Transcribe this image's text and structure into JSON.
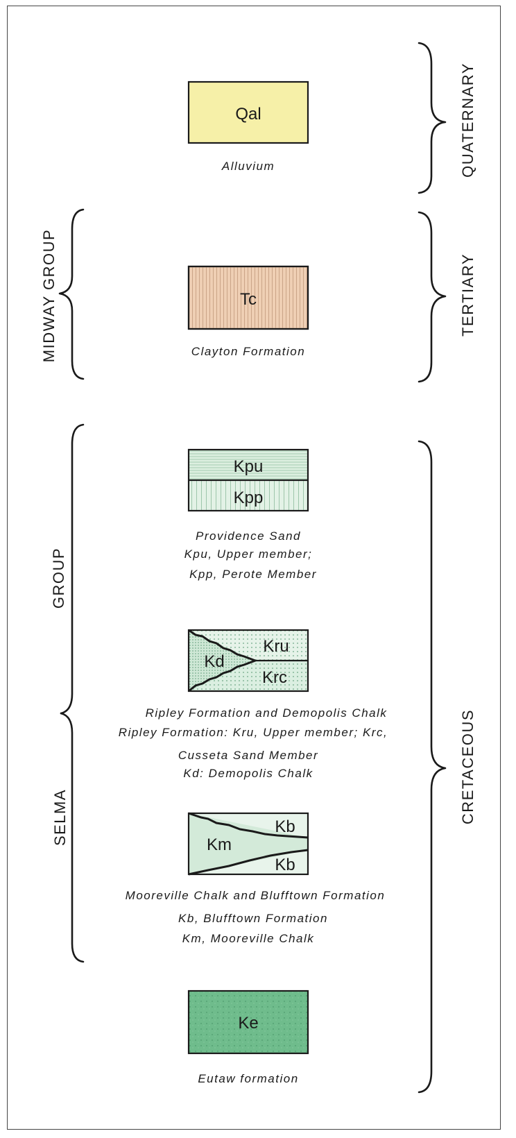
{
  "units": [
    {
      "id": "qal",
      "symbols": [
        "Qal"
      ],
      "caption": [
        "Alluvium"
      ],
      "color": "#f6f0a8"
    },
    {
      "id": "tc",
      "symbols": [
        "Tc"
      ],
      "caption": [
        "Clayton Formation"
      ],
      "color": "#efcfb4"
    },
    {
      "id": "kp",
      "symbols": [
        "Kpu",
        "Kpp"
      ],
      "caption": [
        "Providence Sand",
        "Kpu, Upper member;",
        "Kpp, Perote Member"
      ],
      "color": "#dcefe0"
    },
    {
      "id": "kr",
      "symbols": [
        "Kd",
        "Kru",
        "Krc"
      ],
      "caption": [
        "Ripley Formation and Demopolis Chalk",
        "Ripley Formation: Kru, Upper member; Krc,",
        "Cusseta Sand Member",
        "Kd: Demopolis Chalk"
      ],
      "color": "#dbefe2"
    },
    {
      "id": "km",
      "symbols": [
        "Km",
        "Kb",
        "Kb"
      ],
      "caption": [
        "Mooreville Chalk and Blufftown Formation",
        "Kb, Blufftown Formation",
        "Km, Mooreville Chalk"
      ],
      "color": "#dcefe0"
    },
    {
      "id": "ke",
      "symbols": [
        "Ke"
      ],
      "caption": [
        "Eutaw formation"
      ],
      "color": "#6fbc8c"
    }
  ],
  "periods": [
    "QUATERNARY",
    "TERTIARY",
    "CRETACEOUS"
  ],
  "groups": [
    "MIDWAY GROUP",
    "GROUP",
    "SELMA"
  ]
}
